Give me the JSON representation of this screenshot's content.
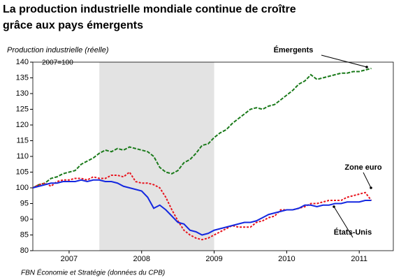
{
  "chart_data": {
    "type": "line",
    "title": "La production industrielle mondiale continue de croître grâce aux pays émergents",
    "subtitle": "Production industrielle (réelle)",
    "base_note": "2007=100",
    "source": "FBN Économie et Stratégie (données du CPB)",
    "x": [
      2007,
      2007.083,
      2007.167,
      2007.25,
      2007.333,
      2007.417,
      2007.5,
      2007.583,
      2007.667,
      2007.75,
      2007.833,
      2007.917,
      2008,
      2008.083,
      2008.167,
      2008.25,
      2008.333,
      2008.417,
      2008.5,
      2008.583,
      2008.667,
      2008.75,
      2008.833,
      2008.917,
      2009,
      2009.083,
      2009.167,
      2009.25,
      2009.333,
      2009.417,
      2009.5,
      2009.583,
      2009.667,
      2009.75,
      2009.833,
      2009.917,
      2010,
      2010.083,
      2010.167,
      2010.25,
      2010.333,
      2010.417,
      2010.5,
      2010.583,
      2010.667,
      2010.75,
      2010.833,
      2010.917,
      2011,
      2011.083,
      2011.167,
      2011.25,
      2011.333,
      2011.417,
      2011.5,
      2011.583,
      2011.667
    ],
    "series": [
      {
        "name": "Émergents",
        "color": "#1a7a1a",
        "dash": "5,2",
        "values": [
          100,
          101,
          101.5,
          103,
          103.5,
          104.5,
          105,
          105.5,
          107.5,
          108.5,
          109.5,
          111,
          112,
          111.5,
          112.5,
          112,
          113,
          112.5,
          112,
          111.5,
          110,
          106.5,
          105,
          104.5,
          105.5,
          108,
          109,
          111,
          113.5,
          114,
          116,
          117.5,
          118.5,
          120.5,
          122,
          123.5,
          125,
          125.5,
          125,
          126,
          126.5,
          128,
          129.5,
          131,
          133,
          134,
          136,
          134.5,
          135,
          135.5,
          136,
          136.5,
          136.5,
          137,
          137,
          137.5,
          138
        ]
      },
      {
        "name": "Zone euro",
        "color": "#e8141e",
        "dash": "3,2",
        "values": [
          100,
          101,
          101.5,
          100.5,
          102,
          102.5,
          102.5,
          103,
          103,
          102.5,
          103.5,
          103,
          103,
          104,
          104,
          103.5,
          105,
          102,
          101.5,
          101.5,
          101,
          100,
          97,
          93,
          89.5,
          86.5,
          85,
          84,
          83.5,
          84,
          85,
          86,
          87,
          88,
          87.5,
          87.5,
          87.5,
          89,
          89.5,
          90.5,
          91,
          93,
          93,
          93,
          93.5,
          94,
          95,
          95,
          95.5,
          96,
          96,
          96,
          97,
          97.5,
          98,
          98.5,
          96
        ]
      },
      {
        "name": "États-Unis",
        "color": "#1428e0",
        "dash": "",
        "values": [
          100,
          100.5,
          101,
          101.5,
          101.5,
          102,
          102,
          102,
          102.5,
          102,
          102.5,
          102.5,
          102,
          102,
          101.5,
          100.5,
          100,
          99.5,
          99,
          97,
          93.5,
          94.5,
          93,
          91,
          89,
          88.5,
          86.5,
          86,
          85,
          85.5,
          86.5,
          87,
          87.5,
          88,
          88.5,
          89,
          89,
          89.5,
          90.5,
          91.5,
          92,
          92.5,
          93,
          93,
          93.5,
          94.5,
          94.5,
          94,
          94.5,
          94.5,
          95,
          95,
          95.5,
          95.5,
          95.5,
          96,
          96
        ]
      }
    ],
    "shaded_x": [
      2007.917,
      2009.5
    ],
    "xlim": [
      2007,
      2011.97
    ],
    "xticks": [
      {
        "value": 2007.5,
        "label": "2007"
      },
      {
        "value": 2008.5,
        "label": "2008"
      },
      {
        "value": 2009.5,
        "label": "2009"
      },
      {
        "value": 2010.5,
        "label": "2010"
      },
      {
        "value": 2011.5,
        "label": "2011"
      }
    ],
    "ylim": [
      80,
      140
    ],
    "yticks": [
      80,
      85,
      90,
      95,
      100,
      105,
      110,
      115,
      120,
      125,
      130,
      135,
      140
    ]
  }
}
